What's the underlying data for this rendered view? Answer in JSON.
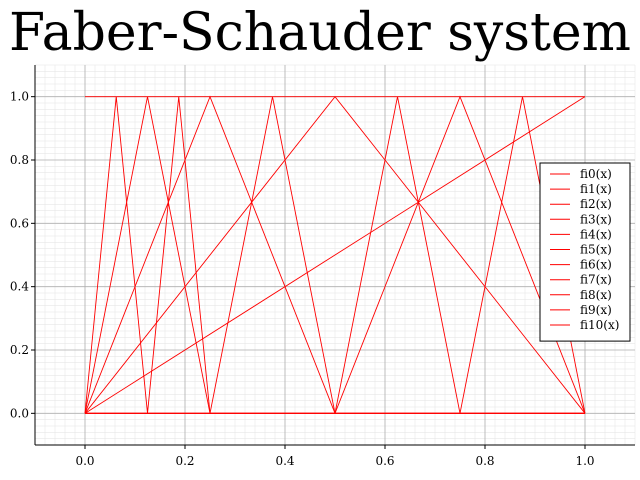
{
  "chart_data": {
    "type": "line",
    "title": "Faber-Schauder system",
    "xlabel": "",
    "ylabel": "",
    "xlim": [
      -0.1,
      1.1
    ],
    "ylim": [
      -0.1,
      1.1
    ],
    "grid": true,
    "legend_position": "right",
    "x_ticks": [
      "0.0",
      "0.2",
      "0.4",
      "0.6",
      "0.8",
      "1.0"
    ],
    "y_ticks": [
      "0.0",
      "0.2",
      "0.4",
      "0.6",
      "0.8",
      "1.0"
    ],
    "line_color": "#ff0000",
    "series": [
      {
        "name": "fi0(x)",
        "x": [
          0,
          1
        ],
        "y": [
          1,
          1
        ]
      },
      {
        "name": "fi1(x)",
        "x": [
          0,
          1
        ],
        "y": [
          0,
          1
        ]
      },
      {
        "name": "fi2(x)",
        "x": [
          0,
          0.5,
          1
        ],
        "y": [
          0,
          1,
          0
        ]
      },
      {
        "name": "fi3(x)",
        "x": [
          0,
          0.25,
          0.5,
          1
        ],
        "y": [
          0,
          1,
          0,
          0
        ]
      },
      {
        "name": "fi4(x)",
        "x": [
          0,
          0.5,
          0.75,
          1
        ],
        "y": [
          0,
          0,
          1,
          0
        ]
      },
      {
        "name": "fi5(x)",
        "x": [
          0,
          0.125,
          0.25,
          1
        ],
        "y": [
          0,
          1,
          0,
          0
        ]
      },
      {
        "name": "fi6(x)",
        "x": [
          0,
          0.25,
          0.375,
          0.5,
          1
        ],
        "y": [
          0,
          0,
          1,
          0,
          0
        ]
      },
      {
        "name": "fi7(x)",
        "x": [
          0,
          0.5,
          0.625,
          0.75,
          1
        ],
        "y": [
          0,
          0,
          1,
          0,
          0
        ]
      },
      {
        "name": "fi8(x)",
        "x": [
          0,
          0.75,
          0.875,
          1
        ],
        "y": [
          0,
          0,
          1,
          0
        ]
      },
      {
        "name": "fi9(x)",
        "x": [
          0,
          0.0625,
          0.125,
          1
        ],
        "y": [
          0,
          1,
          0,
          0
        ]
      },
      {
        "name": "fi10(x)",
        "x": [
          0,
          0.125,
          0.1875,
          0.25,
          1
        ],
        "y": [
          0,
          0,
          1,
          0,
          0
        ]
      }
    ]
  }
}
